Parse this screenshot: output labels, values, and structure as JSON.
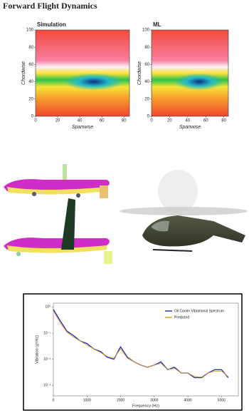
{
  "title": "Forward Flight Dynamics",
  "heatmaps": [
    {
      "title": "Simulation",
      "x_label": "Spanwise",
      "y_label": "Chordwise",
      "xticks": [
        0,
        20,
        40,
        60,
        80
      ],
      "yticks": [
        0,
        20,
        40,
        60,
        80,
        100
      ],
      "xlim": [
        0,
        85
      ],
      "ylim": [
        0,
        100
      ]
    },
    {
      "title": "ML",
      "x_label": "Spanwise",
      "y_label": "Chordwise",
      "xticks": [
        0,
        20,
        40,
        60,
        80
      ],
      "yticks": [
        0,
        20,
        40,
        60,
        80,
        100
      ],
      "xlim": [
        0,
        85
      ],
      "ylim": [
        0,
        100
      ]
    }
  ],
  "chart_data": {
    "type": "line",
    "x_label": "Frequency (Hz)",
    "y_label": "Vibration (g²/Hz)",
    "x": [
      0,
      200,
      400,
      600,
      800,
      1000,
      1200,
      1400,
      1600,
      1800,
      2000,
      2200,
      2400,
      2600,
      2800,
      3000,
      3200,
      3400,
      3600,
      3800,
      4000,
      4200,
      4400,
      4600,
      4800,
      5000,
      5200
    ],
    "series": [
      {
        "name": "Oil Cooler Vibrational Spectrum",
        "color": "#2233cc",
        "values": [
          0.8,
          0.3,
          0.12,
          0.08,
          0.05,
          0.04,
          0.025,
          0.02,
          0.012,
          0.01,
          0.03,
          0.012,
          0.008,
          0.006,
          0.005,
          0.006,
          0.008,
          0.004,
          0.005,
          0.003,
          0.003,
          0.002,
          0.002,
          0.003,
          0.004,
          0.004,
          0.002
        ]
      },
      {
        "name": "Predicted",
        "color": "#e8a020",
        "values": [
          0.7,
          0.25,
          0.11,
          0.07,
          0.05,
          0.035,
          0.025,
          0.018,
          0.013,
          0.011,
          0.025,
          0.011,
          0.008,
          0.006,
          0.005,
          0.006,
          0.007,
          0.004,
          0.0045,
          0.003,
          0.003,
          0.0022,
          0.0021,
          0.003,
          0.0035,
          0.0035,
          0.0022
        ]
      }
    ],
    "xlim": [
      0,
      5500
    ],
    "ylim": [
      0.0004,
      1.4
    ],
    "log_y": true,
    "xticks": [
      0,
      1000,
      2000,
      3000,
      4000,
      5000
    ],
    "yticks": [
      {
        "value": 1,
        "label": "10⁰"
      },
      {
        "value": 0.1,
        "label": "10⁻¹"
      },
      {
        "value": 0.01,
        "label": "10⁻²"
      },
      {
        "value": 0.001,
        "label": "10⁻³"
      }
    ],
    "legend": "upper right"
  }
}
